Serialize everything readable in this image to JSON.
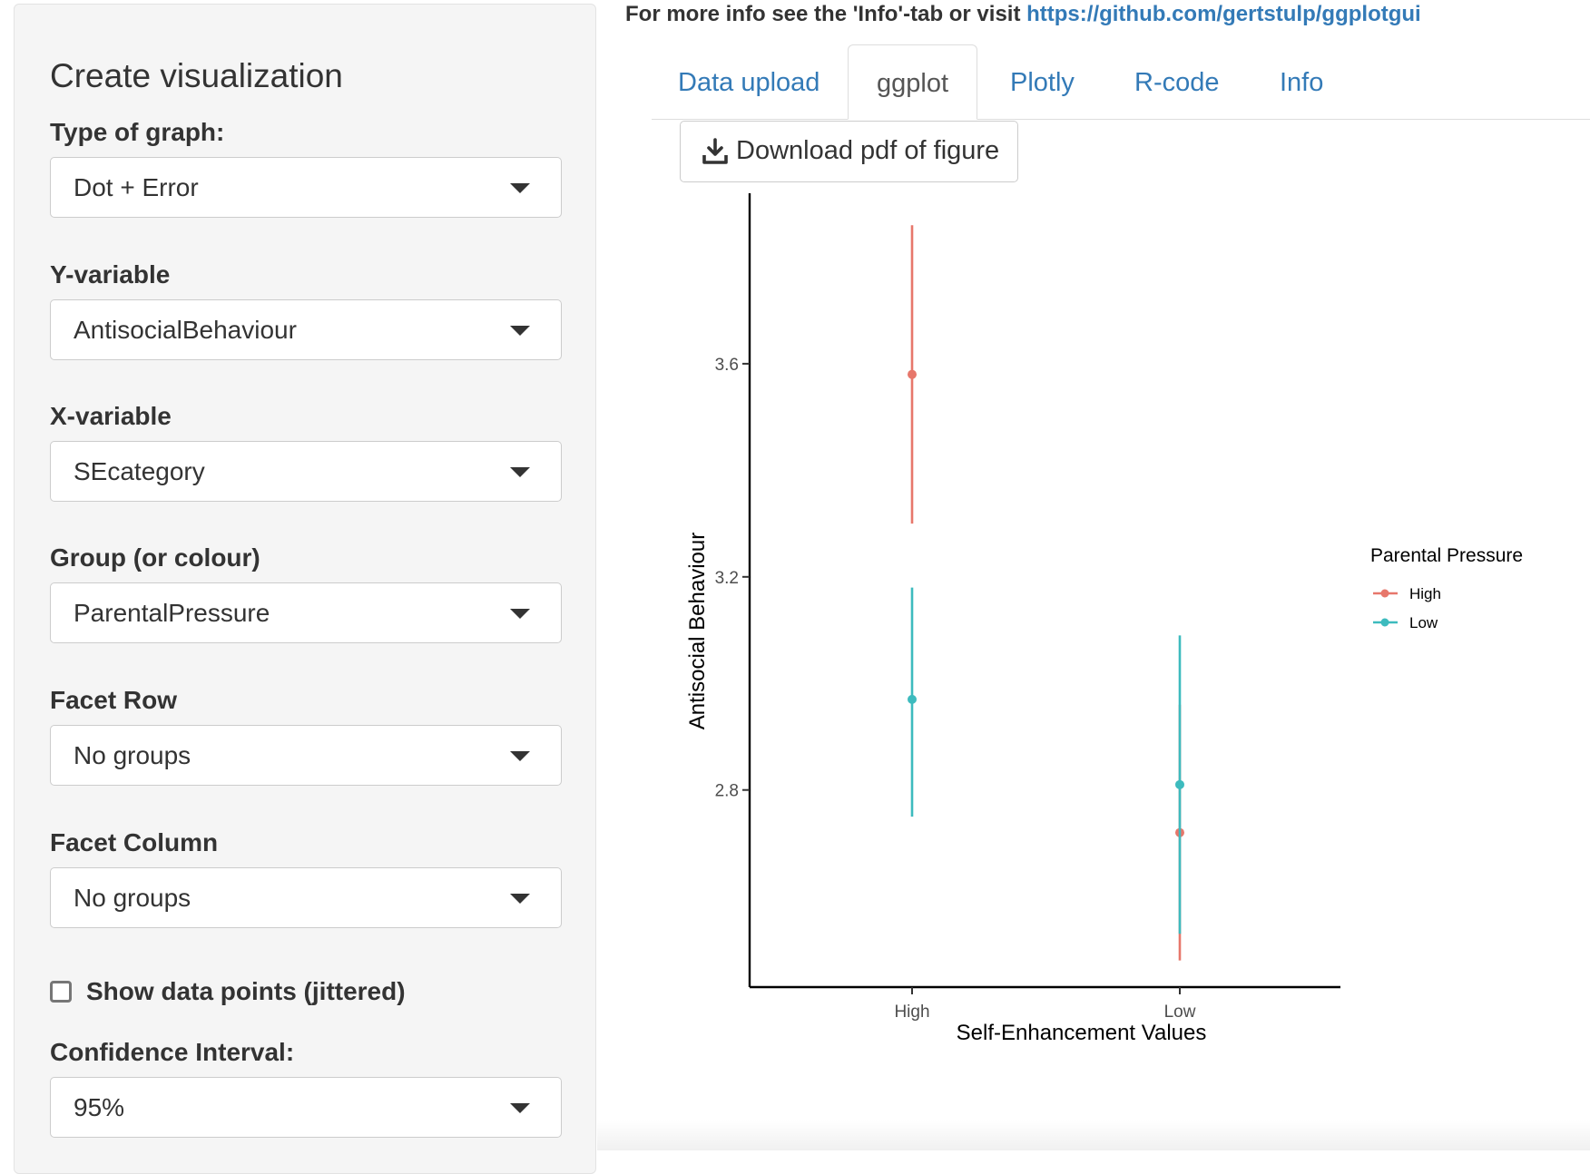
{
  "header": {
    "info_prefix": "For more info see the 'Info'-tab or visit ",
    "info_link": "https://github.com/gertstulp/ggplotgui"
  },
  "sidebar": {
    "title": "Create visualization",
    "type_of_graph": {
      "label": "Type of graph:",
      "value": "Dot + Error"
    },
    "y_variable": {
      "label": "Y-variable",
      "value": "AntisocialBehaviour"
    },
    "x_variable": {
      "label": "X-variable",
      "value": "SEcategory"
    },
    "group": {
      "label": "Group (or colour)",
      "value": "ParentalPressure"
    },
    "facet_row": {
      "label": "Facet Row",
      "value": "No groups"
    },
    "facet_column": {
      "label": "Facet Column",
      "value": "No groups"
    },
    "show_points": {
      "label": "Show data points (jittered)",
      "checked": false
    },
    "confidence": {
      "label": "Confidence Interval:",
      "value": "95%"
    }
  },
  "tabs": [
    {
      "label": "Data upload",
      "active": false
    },
    {
      "label": "ggplot",
      "active": true
    },
    {
      "label": "Plotly",
      "active": false
    },
    {
      "label": "R-code",
      "active": false
    },
    {
      "label": "Info",
      "active": false
    }
  ],
  "download_button": {
    "label": "Download pdf of figure",
    "icon": "download-icon"
  },
  "chart_data": {
    "type": "scatter",
    "subtype": "dot-errorbar",
    "categories": [
      "High",
      "Low"
    ],
    "xlabel": "Self-Enhancement Values",
    "ylabel": "Antisocial Behaviour",
    "ylim": [
      2.43,
      3.92
    ],
    "yticks": [
      2.8,
      3.2,
      3.6
    ],
    "grid": false,
    "legend": {
      "title": "Parental Pressure",
      "position": "right"
    },
    "series": [
      {
        "name": "High",
        "color": "#e7776b",
        "values": [
          3.58,
          2.72
        ],
        "lower": [
          3.3,
          2.48
        ],
        "upper": [
          3.86,
          2.96
        ]
      },
      {
        "name": "Low",
        "color": "#3dbbbe",
        "values": [
          2.97,
          2.81
        ],
        "lower": [
          2.75,
          2.53
        ],
        "upper": [
          3.18,
          3.09
        ]
      }
    ]
  }
}
